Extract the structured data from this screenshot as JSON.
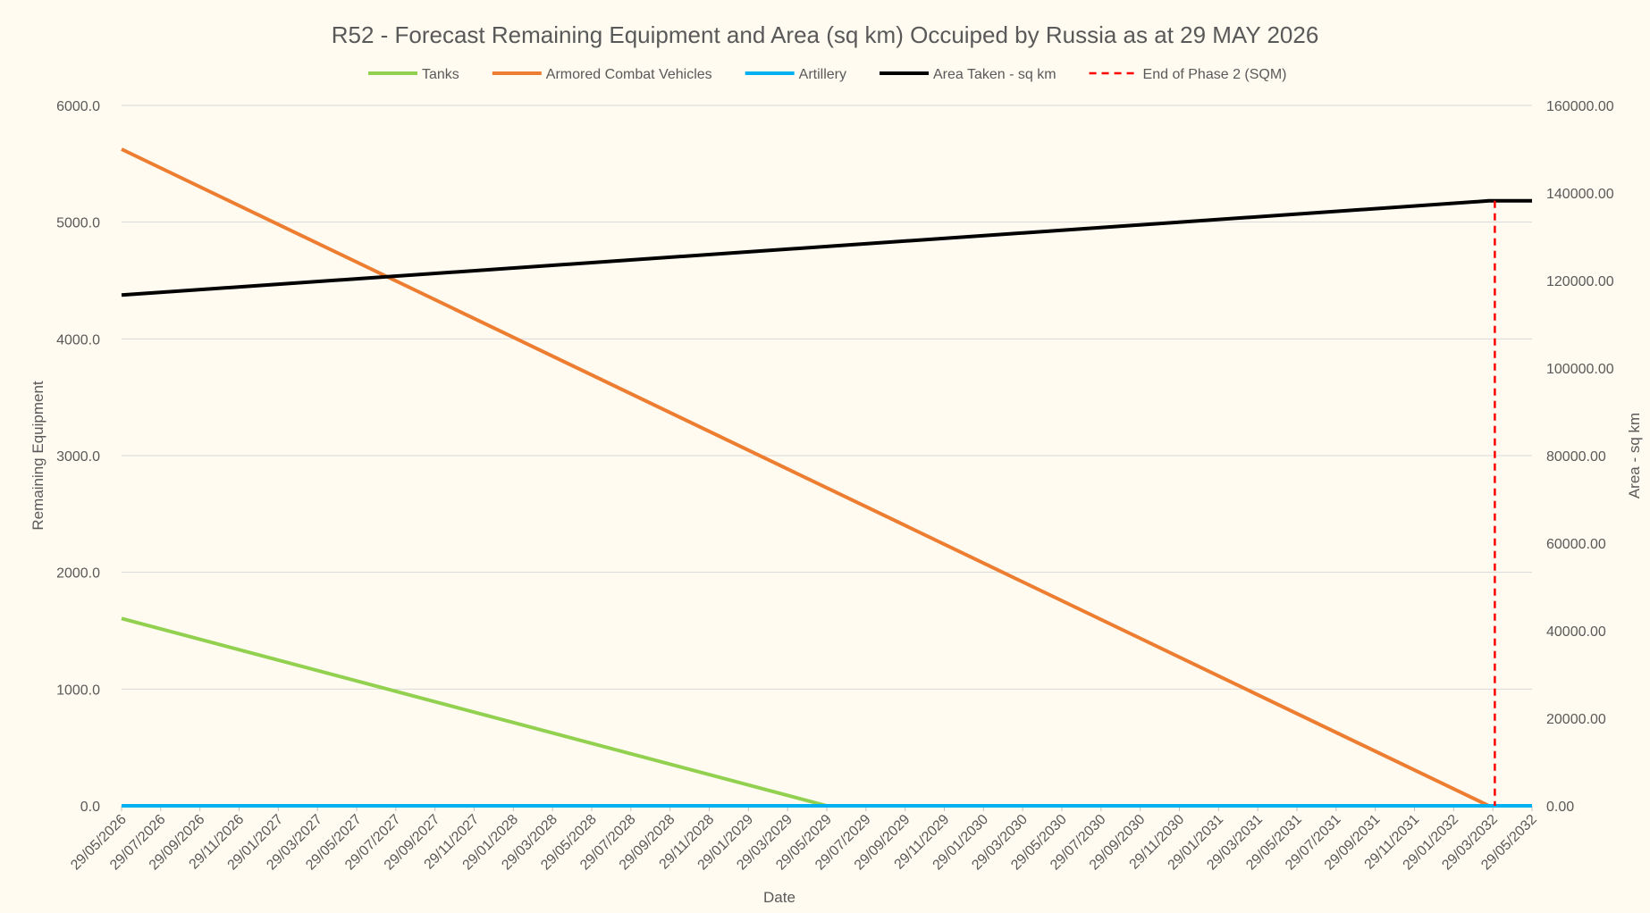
{
  "chart_data": {
    "type": "line",
    "title": "R52 - Forecast Remaining Equipment and Area (sq km) Occuiped by Russia as at 29 MAY 2026",
    "xlabel": "Date",
    "ylabel": "Remaining Equipment",
    "y2label": "Area - sq km",
    "grid": true,
    "legend_position": "top",
    "ylim": [
      0,
      6000
    ],
    "y2lim": [
      0,
      160000
    ],
    "yticks": [
      "0.0",
      "1000.0",
      "2000.0",
      "3000.0",
      "4000.0",
      "5000.0",
      "6000.0"
    ],
    "y2ticks": [
      "0.00",
      "20000.00",
      "40000.00",
      "60000.00",
      "80000.00",
      "100000.00",
      "120000.00",
      "140000.00",
      "160000.00"
    ],
    "categories": [
      "29/05/2026",
      "29/07/2026",
      "29/09/2026",
      "29/11/2026",
      "29/01/2027",
      "29/03/2027",
      "29/05/2027",
      "29/07/2027",
      "29/09/2027",
      "29/11/2027",
      "29/01/2028",
      "29/03/2028",
      "29/05/2028",
      "29/07/2028",
      "29/09/2028",
      "29/11/2028",
      "29/01/2029",
      "29/03/2029",
      "29/05/2029",
      "29/07/2029",
      "29/09/2029",
      "29/11/2029",
      "29/01/2030",
      "29/03/2030",
      "29/05/2030",
      "29/07/2030",
      "29/09/2030",
      "29/11/2030",
      "29/01/2031",
      "29/03/2031",
      "29/05/2031",
      "29/07/2031",
      "29/09/2031",
      "29/11/2031",
      "29/01/2032",
      "29/03/2032",
      "29/05/2032"
    ],
    "series": [
      {
        "name": "Tanks",
        "axis": "left",
        "color": "#92d050",
        "style": "solid",
        "points": [
          [
            0,
            1605
          ],
          [
            18.0,
            0
          ],
          [
            36,
            0
          ]
        ]
      },
      {
        "name": "Armored Combat Vehicles",
        "axis": "left",
        "color": "#ed7d31",
        "style": "solid",
        "points": [
          [
            0,
            5625
          ],
          [
            34.9,
            0
          ],
          [
            36,
            0
          ]
        ]
      },
      {
        "name": "Artillery",
        "axis": "left",
        "color": "#00b0f0",
        "style": "solid",
        "points": [
          [
            0,
            0
          ],
          [
            36,
            0
          ]
        ]
      },
      {
        "name": "Area Taken - sq km",
        "axis": "right",
        "color": "#000000",
        "style": "solid",
        "points": [
          [
            0,
            116700
          ],
          [
            34.9,
            138200
          ],
          [
            36,
            138200
          ]
        ]
      },
      {
        "name": "End of Phase 2 (SQM)",
        "axis": "right",
        "color": "#ff0000",
        "style": "dashed",
        "points": [
          [
            35.05,
            138200
          ],
          [
            35.05,
            0
          ]
        ]
      }
    ]
  }
}
